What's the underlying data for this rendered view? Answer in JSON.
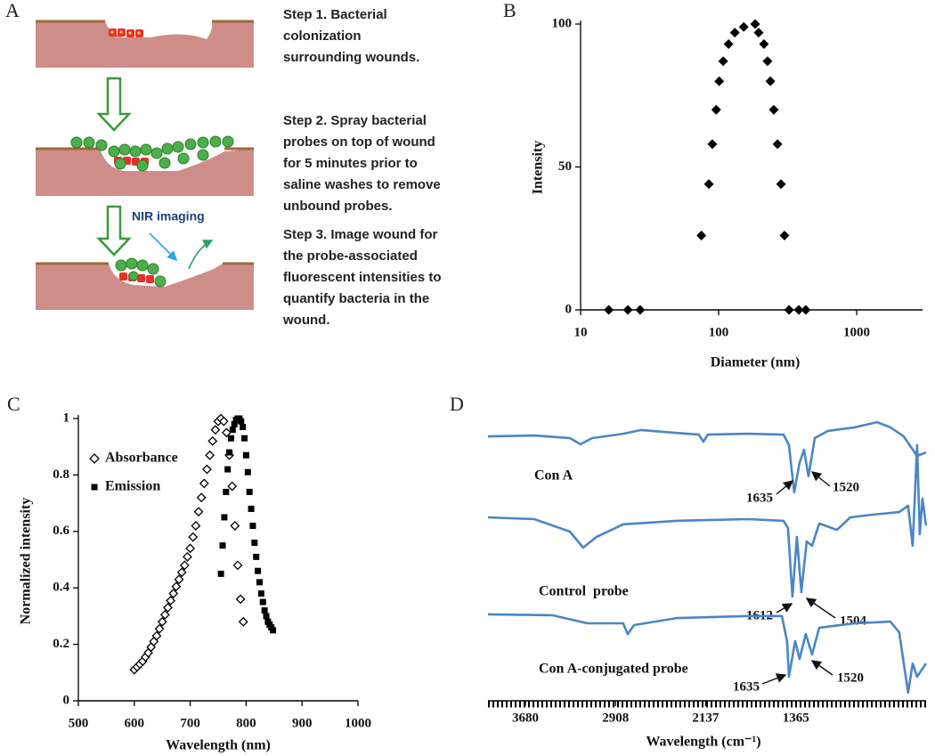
{
  "panel_a": {
    "label": "A",
    "steps": [
      {
        "lines": [
          "Step 1. Bacterial",
          "colonization",
          "surrounding wounds."
        ]
      },
      {
        "lines": [
          "Step 2. Spray bacterial",
          "probes on top of wound",
          "for 5 minutes prior to",
          "saline washes to remove",
          "unbound probes."
        ]
      },
      {
        "lines": [
          "Step 3. Image wound for",
          "the probe-associated",
          "fluorescent intensities to",
          "quantify bacteria in the",
          "wound."
        ]
      }
    ],
    "nir_label": "NIR imaging"
  },
  "chart_data": [
    {
      "type": "scatter",
      "label": "B",
      "xlabel": "Diameter (nm)",
      "ylabel": "Intensity",
      "xscale": "log",
      "xlim": [
        10,
        3000
      ],
      "xticks": [
        10,
        100,
        1000
      ],
      "ylim": [
        0,
        100
      ],
      "yticks": [
        0,
        50,
        100
      ],
      "marker": "diamond",
      "color": "#000000",
      "x": [
        16,
        22,
        27,
        75,
        85,
        90,
        96,
        101,
        108,
        118,
        131,
        152,
        184,
        195,
        213,
        226,
        237,
        251,
        267,
        283,
        300,
        324,
        381,
        428
      ],
      "values": [
        0,
        0,
        0,
        26,
        44,
        58,
        70,
        80,
        87,
        93,
        97,
        99,
        100,
        97,
        93,
        87,
        80,
        70,
        58,
        44,
        26,
        0,
        0,
        0
      ]
    },
    {
      "type": "scatter",
      "label": "C",
      "xlabel": "Wavelength (nm)",
      "ylabel": "Normalized intensity",
      "xlim": [
        500,
        1000
      ],
      "xticks": [
        500,
        600,
        700,
        800,
        900,
        1000
      ],
      "ylim": [
        0,
        1
      ],
      "yticks": [
        0,
        0.2,
        0.4,
        0.6,
        0.8,
        1
      ],
      "legend": "upper left",
      "series": [
        {
          "name": "Absorbance",
          "marker": "diamond-open",
          "color": "#000000",
          "x": [
            600,
            605,
            610,
            615,
            620,
            625,
            630,
            635,
            640,
            645,
            650,
            655,
            660,
            665,
            670,
            675,
            680,
            685,
            690,
            695,
            700,
            705,
            710,
            715,
            720,
            725,
            730,
            735,
            740,
            745,
            750,
            755,
            760,
            765,
            770,
            775,
            780,
            785,
            790,
            795
          ],
          "values": [
            0.11,
            0.12,
            0.13,
            0.14,
            0.155,
            0.17,
            0.19,
            0.21,
            0.23,
            0.255,
            0.28,
            0.305,
            0.33,
            0.355,
            0.38,
            0.405,
            0.43,
            0.455,
            0.48,
            0.51,
            0.54,
            0.58,
            0.62,
            0.67,
            0.72,
            0.77,
            0.82,
            0.87,
            0.92,
            0.96,
            0.99,
            1,
            0.99,
            0.95,
            0.87,
            0.76,
            0.62,
            0.48,
            0.36,
            0.28
          ]
        },
        {
          "name": "Emission",
          "marker": "square",
          "color": "#000000",
          "x": [
            755,
            758,
            761,
            764,
            767,
            770,
            773,
            776,
            779,
            782,
            785,
            788,
            791,
            794,
            797,
            800,
            803,
            806,
            809,
            812,
            815,
            818,
            821,
            824,
            827,
            830,
            833,
            836,
            839,
            842,
            845,
            848
          ],
          "values": [
            0.45,
            0.55,
            0.65,
            0.74,
            0.82,
            0.88,
            0.93,
            0.96,
            0.98,
            0.995,
            1,
            1,
            0.99,
            0.97,
            0.93,
            0.87,
            0.81,
            0.74,
            0.68,
            0.62,
            0.56,
            0.51,
            0.46,
            0.42,
            0.38,
            0.35,
            0.32,
            0.3,
            0.28,
            0.27,
            0.26,
            0.25
          ]
        }
      ]
    },
    {
      "type": "line",
      "label": "D",
      "xlabel": "Wavelength (cm⁻¹)",
      "xlim": [
        4000,
        250
      ],
      "xticks": [
        3680,
        2908,
        2137,
        1365
      ],
      "ylim": [
        0,
        100
      ],
      "series": [
        {
          "name": "Con A",
          "color": "#4a86c5",
          "peak_labels": [
            "1635",
            "1520"
          ],
          "x": [
            4000,
            3604,
            3299,
            3208,
            3108,
            2842,
            2689,
            2385,
            2194,
            2156,
            2118,
            1775,
            1470,
            1424,
            1379,
            1333,
            1295,
            1257,
            1203,
            1089,
            861,
            670,
            556,
            442,
            327,
            251
          ],
          "values": [
            90.8,
            91.1,
            90.2,
            88.1,
            90.2,
            91.7,
            93.0,
            92.0,
            91.4,
            89.0,
            91.4,
            91.7,
            91.4,
            87.8,
            71.6,
            81.7,
            86.2,
            77.1,
            90.2,
            92.7,
            93.9,
            95.7,
            93.9,
            90.8,
            84.1,
            85.3
          ]
        },
        {
          "name": "Control  probe",
          "color": "#4a86c5",
          "peak_labels": [
            "1612",
            "1504"
          ],
          "x": [
            4000,
            3604,
            3299,
            3185,
            3070,
            2842,
            2385,
            1775,
            1470,
            1432,
            1394,
            1356,
            1318,
            1272,
            1226,
            1165,
            1013,
            899,
            708,
            480,
            404,
            365,
            327,
            304,
            281,
            251
          ],
          "values": [
            63.0,
            62.4,
            58.1,
            52.6,
            56.3,
            60.6,
            61.8,
            62.4,
            61.8,
            59.3,
            35.8,
            56.3,
            37.3,
            54.7,
            53.2,
            60.9,
            58.7,
            63.0,
            63.9,
            64.8,
            67.0,
            53.2,
            87.8,
            57.2,
            69.4,
            60.2
          ]
        },
        {
          "name": "Con A-conjugated probe",
          "color": "#4a86c5",
          "peak_labels": [
            "1635",
            "1520"
          ],
          "x": [
            4000,
            3451,
            3147,
            2842,
            2804,
            2750,
            2385,
            1775,
            1485,
            1440,
            1424,
            1371,
            1333,
            1280,
            1226,
            1165,
            861,
            556,
            480,
            404,
            365,
            327,
            251
          ],
          "values": [
            29.7,
            29.4,
            26.6,
            26.6,
            22.9,
            26.0,
            28.4,
            29.1,
            29.1,
            20.5,
            8.3,
            20.5,
            14.4,
            22.9,
            15.9,
            25.1,
            26.6,
            27.2,
            23.5,
            2.8,
            12.8,
            8.3,
            12.8
          ]
        }
      ]
    }
  ]
}
